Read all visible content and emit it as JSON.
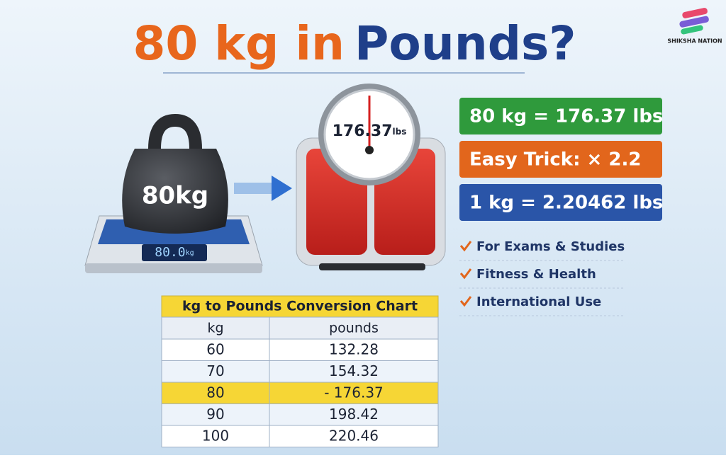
{
  "header": {
    "title_part1": "80 kg in",
    "title_part2": "Pounds?",
    "logo": "SHIKSHA NATION"
  },
  "illustration": {
    "weight_label": "80kg",
    "display_value": "80.0",
    "display_unit": "kg",
    "dial_value": "176.37",
    "dial_unit": "lbs"
  },
  "facts": [
    "80 kg = 176.37 lbs",
    "Easy Trick: × 2.2",
    "1 kg = 2.20462 lbs"
  ],
  "uses": [
    "For Exams & Studies",
    "Fitness & Health",
    "International Use"
  ],
  "table": {
    "title": "kg to Pounds Conversion Chart",
    "headers": [
      "kg",
      "pounds"
    ],
    "rows": [
      [
        "60",
        "132.28"
      ],
      [
        "70",
        "154.32"
      ],
      [
        "80",
        "- 176.37"
      ],
      [
        "90",
        "198.42"
      ],
      [
        "100",
        "220.46"
      ]
    ],
    "highlight_row": 2
  }
}
